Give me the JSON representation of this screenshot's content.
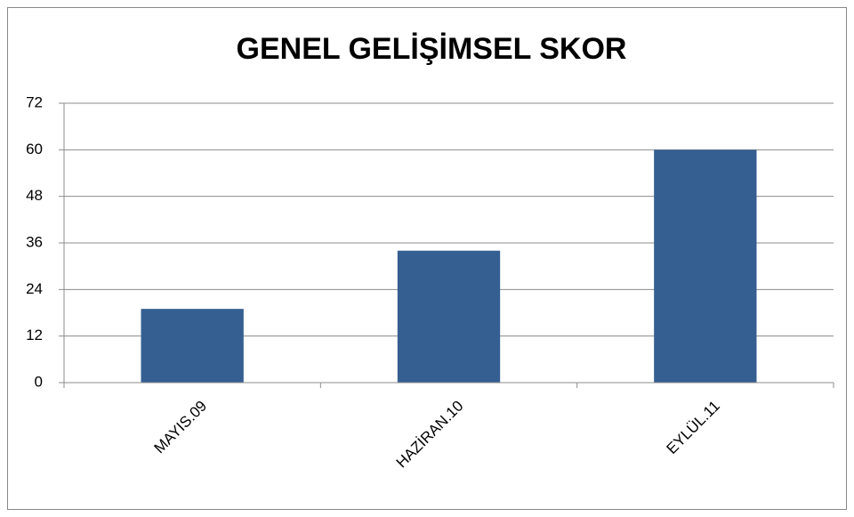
{
  "chart_data": {
    "type": "bar",
    "title": "GENEL GELİŞİMSEL SKOR",
    "categories": [
      "MAYIS.09",
      "HAZİRAN.10",
      "EYLÜL.11"
    ],
    "values": [
      19,
      34,
      60
    ],
    "color": "#355f91",
    "ylim": [
      0,
      72
    ],
    "yticks": [
      0,
      12,
      24,
      36,
      48,
      60,
      72
    ],
    "grid": true
  }
}
